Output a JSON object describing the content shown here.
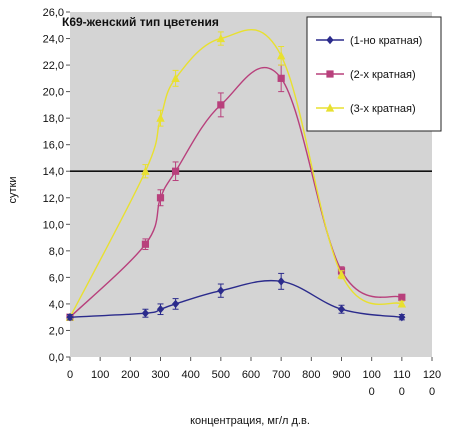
{
  "chart_data": {
    "type": "line",
    "title": "К69-женский тип цветения",
    "xlabel": "концентрация, мг/л д.в.",
    "ylabel": "сутки",
    "xlim": [
      0,
      1200
    ],
    "ylim": [
      0,
      26
    ],
    "x_ticks": [
      0,
      100,
      200,
      300,
      400,
      500,
      600,
      700,
      800,
      900,
      1000,
      1100,
      1200
    ],
    "x_tick_labels": [
      [
        "0"
      ],
      [
        "100"
      ],
      [
        "200"
      ],
      [
        "300"
      ],
      [
        "400"
      ],
      [
        "500"
      ],
      [
        "600"
      ],
      [
        "700"
      ],
      [
        "800"
      ],
      [
        "900"
      ],
      [
        "100",
        "0"
      ],
      [
        "110",
        "0"
      ],
      [
        "120",
        "0"
      ]
    ],
    "y_ticks": [
      0,
      2,
      4,
      6,
      8,
      10,
      12,
      14,
      16,
      18,
      20,
      22,
      24,
      26
    ],
    "y_tick_labels": [
      "0,0",
      "2,0",
      "4,0",
      "6,0",
      "8,0",
      "10,0",
      "12,0",
      "14,0",
      "16,0",
      "18,0",
      "20,0",
      "22,0",
      "24,0",
      "26,0"
    ],
    "reference_line": 14,
    "grid": false,
    "legend_position": "top-right",
    "background_color": "#d4d4d4",
    "series": [
      {
        "name": "(1-но кратная)",
        "color": "#2b2b8c",
        "marker": "diamond",
        "points": [
          {
            "x": 0,
            "y": 3.0,
            "err": 0.2
          },
          {
            "x": 250,
            "y": 3.3,
            "err": 0.3
          },
          {
            "x": 300,
            "y": 3.6,
            "err": 0.4
          },
          {
            "x": 350,
            "y": 4.0,
            "err": 0.4
          },
          {
            "x": 500,
            "y": 5.0,
            "err": 0.5
          },
          {
            "x": 700,
            "y": 5.7,
            "err": 0.6
          },
          {
            "x": 900,
            "y": 3.6,
            "err": 0.3
          },
          {
            "x": 1100,
            "y": 3.0,
            "err": 0.2
          }
        ]
      },
      {
        "name": "(2-х кратная)",
        "color": "#b8407c",
        "marker": "square",
        "points": [
          {
            "x": 0,
            "y": 3.0,
            "err": 0.2
          },
          {
            "x": 250,
            "y": 8.5,
            "err": 0.4
          },
          {
            "x": 300,
            "y": 12.0,
            "err": 0.6
          },
          {
            "x": 350,
            "y": 14.0,
            "err": 0.7
          },
          {
            "x": 500,
            "y": 19.0,
            "err": 0.9
          },
          {
            "x": 700,
            "y": 21.0,
            "err": 1.0
          },
          {
            "x": 900,
            "y": 6.5,
            "err": 0.3
          },
          {
            "x": 1100,
            "y": 4.5,
            "err": 0.2
          }
        ]
      },
      {
        "name": "(3-х кратная)",
        "color": "#e8e030",
        "marker": "triangle",
        "points": [
          {
            "x": 0,
            "y": 3.0,
            "err": 0.2
          },
          {
            "x": 250,
            "y": 14.0,
            "err": 0.5
          },
          {
            "x": 300,
            "y": 18.0,
            "err": 0.6
          },
          {
            "x": 350,
            "y": 21.0,
            "err": 0.6
          },
          {
            "x": 500,
            "y": 24.0,
            "err": 0.5
          },
          {
            "x": 700,
            "y": 22.7,
            "err": 0.7
          },
          {
            "x": 900,
            "y": 6.2,
            "err": 0.3
          },
          {
            "x": 1100,
            "y": 4.0,
            "err": 0.2
          }
        ]
      }
    ]
  }
}
